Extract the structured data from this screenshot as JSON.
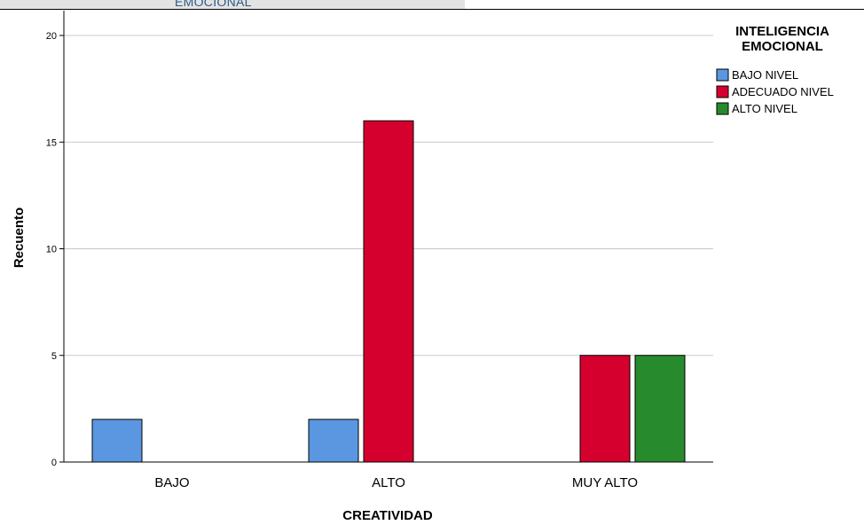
{
  "header": {
    "partial_title": "EMOCIONAL"
  },
  "colors": {
    "bajo_nivel": "#5a97e0",
    "adecuado_nivel": "#d6002e",
    "alto_nivel": "#278a2c",
    "grid": "#c8c8c8"
  },
  "chart_data": {
    "type": "bar",
    "categories": [
      "BAJO",
      "ALTO",
      "MUY ALTO"
    ],
    "series": [
      {
        "name": "BAJO NIVEL",
        "values": [
          2,
          2,
          0
        ]
      },
      {
        "name": "ADECUADO NIVEL",
        "values": [
          0,
          16,
          5
        ]
      },
      {
        "name": "ALTO NIVEL",
        "values": [
          0,
          0,
          5
        ]
      }
    ],
    "xlabel": "CREATIVIDAD",
    "ylabel": "Recuento",
    "ylim": [
      0,
      20
    ],
    "yticks": [
      "0",
      "5",
      "10",
      "15",
      "20"
    ],
    "grid": true,
    "legend": {
      "title_line1": "INTELIGENCIA",
      "title_line2": "EMOCIONAL",
      "placement": "top-right"
    }
  }
}
